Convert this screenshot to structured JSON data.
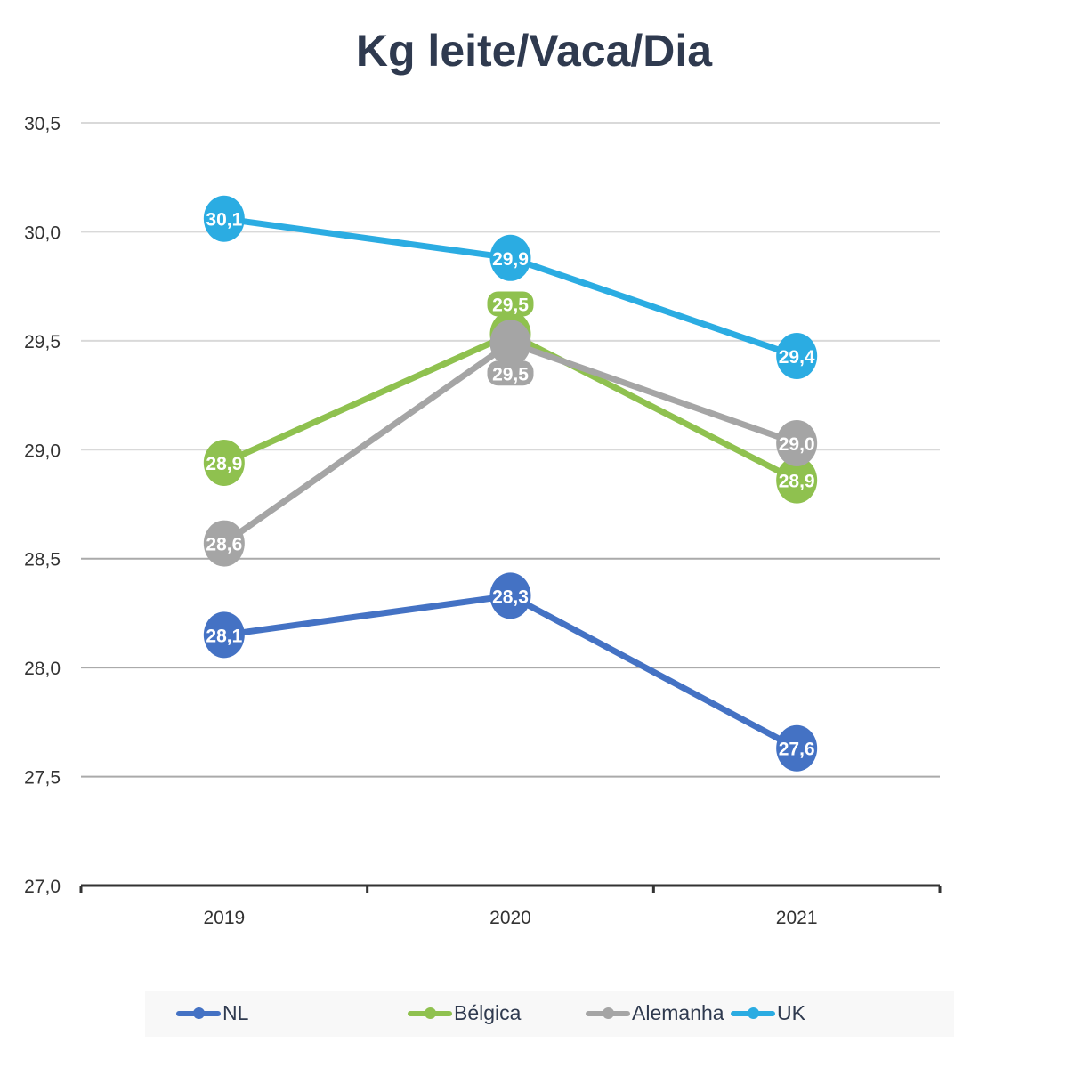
{
  "chart_data": {
    "type": "line",
    "title": "Kg leite/Vaca/Dia",
    "categories": [
      "2019",
      "2020",
      "2021"
    ],
    "ylim": [
      27.0,
      30.5
    ],
    "yticks": [
      "27,0",
      "27,5",
      "28,0",
      "28,5",
      "29,0",
      "29,5",
      "30,0",
      "30,5"
    ],
    "grid": true,
    "legend_position": "bottom",
    "series": [
      {
        "name": "NL",
        "color": "#4472c4",
        "values": [
          28.15,
          28.33,
          27.63
        ],
        "labels": [
          "28,1",
          "28,3",
          "27,6"
        ]
      },
      {
        "name": "Bélgica",
        "color": "#8fc14f",
        "values": [
          28.94,
          29.53,
          28.86
        ],
        "labels": [
          "28,9",
          "29,5",
          "28,9"
        ]
      },
      {
        "name": "Alemanha",
        "color": "#a5a5a5",
        "values": [
          28.57,
          29.49,
          29.03
        ],
        "labels": [
          "28,6",
          "29,5",
          "29,0"
        ]
      },
      {
        "name": "UK",
        "color": "#2bace2",
        "values": [
          30.06,
          29.88,
          29.43
        ],
        "labels": [
          "30,1",
          "29,9",
          "29,4"
        ]
      }
    ]
  }
}
